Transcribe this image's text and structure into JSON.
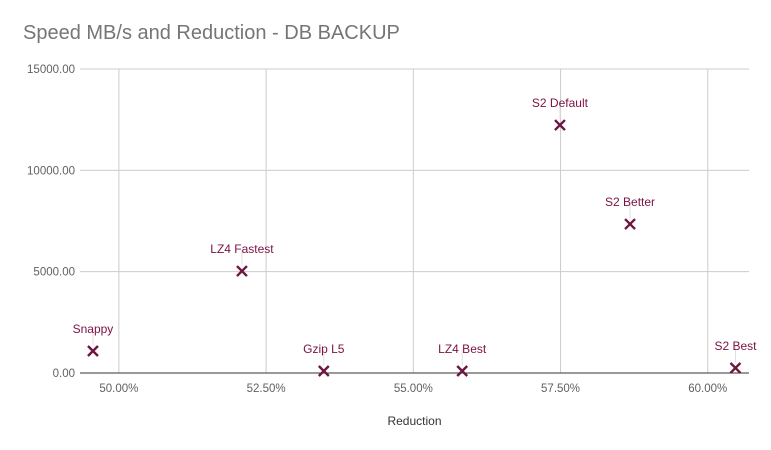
{
  "chart_data": {
    "type": "scatter",
    "title": "Speed MB/s and Reduction - DB BACKUP",
    "xlabel": "Reduction",
    "ylabel": "",
    "xlim": [
      49.34,
      60.7
    ],
    "ylim": [
      0,
      15000
    ],
    "x_ticks": [
      50,
      52.5,
      55,
      57.5,
      60
    ],
    "x_tick_labels": [
      "50.00%",
      "52.50%",
      "55.00%",
      "57.50%",
      "60.00%"
    ],
    "y_ticks": [
      0,
      5000,
      10000,
      15000
    ],
    "y_tick_labels": [
      "0.00",
      "5000.00",
      "10000.00",
      "15000.00"
    ],
    "grid": true,
    "marker_color": "#6d1642",
    "label_color": "#7b1143",
    "points": [
      {
        "label": "Snappy",
        "x": 49.56,
        "y": 1085
      },
      {
        "label": "LZ4 Fastest",
        "x": 52.09,
        "y": 5030
      },
      {
        "label": "Gzip L5",
        "x": 53.48,
        "y": 100
      },
      {
        "label": "LZ4 Best",
        "x": 55.83,
        "y": 100
      },
      {
        "label": "S2 Default",
        "x": 57.49,
        "y": 12235
      },
      {
        "label": "S2 Better",
        "x": 58.68,
        "y": 7350
      },
      {
        "label": "S2 Best",
        "x": 60.47,
        "y": 250
      }
    ]
  }
}
